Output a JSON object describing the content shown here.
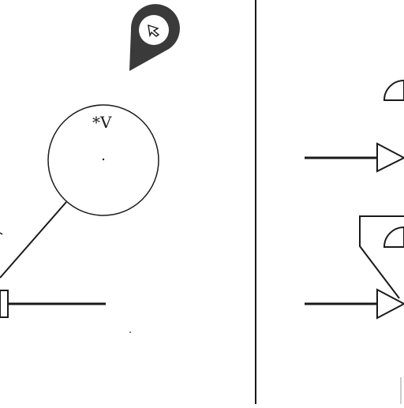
{
  "labels": {
    "circle_label": "*V"
  },
  "colors": {
    "background": "#ffffff",
    "ink": "#1a1a1a",
    "pin_fill": "#3a3a3a"
  },
  "icons": {
    "location_pin": "location-pin-icon",
    "cursor": "cursor-arrow-icon"
  }
}
